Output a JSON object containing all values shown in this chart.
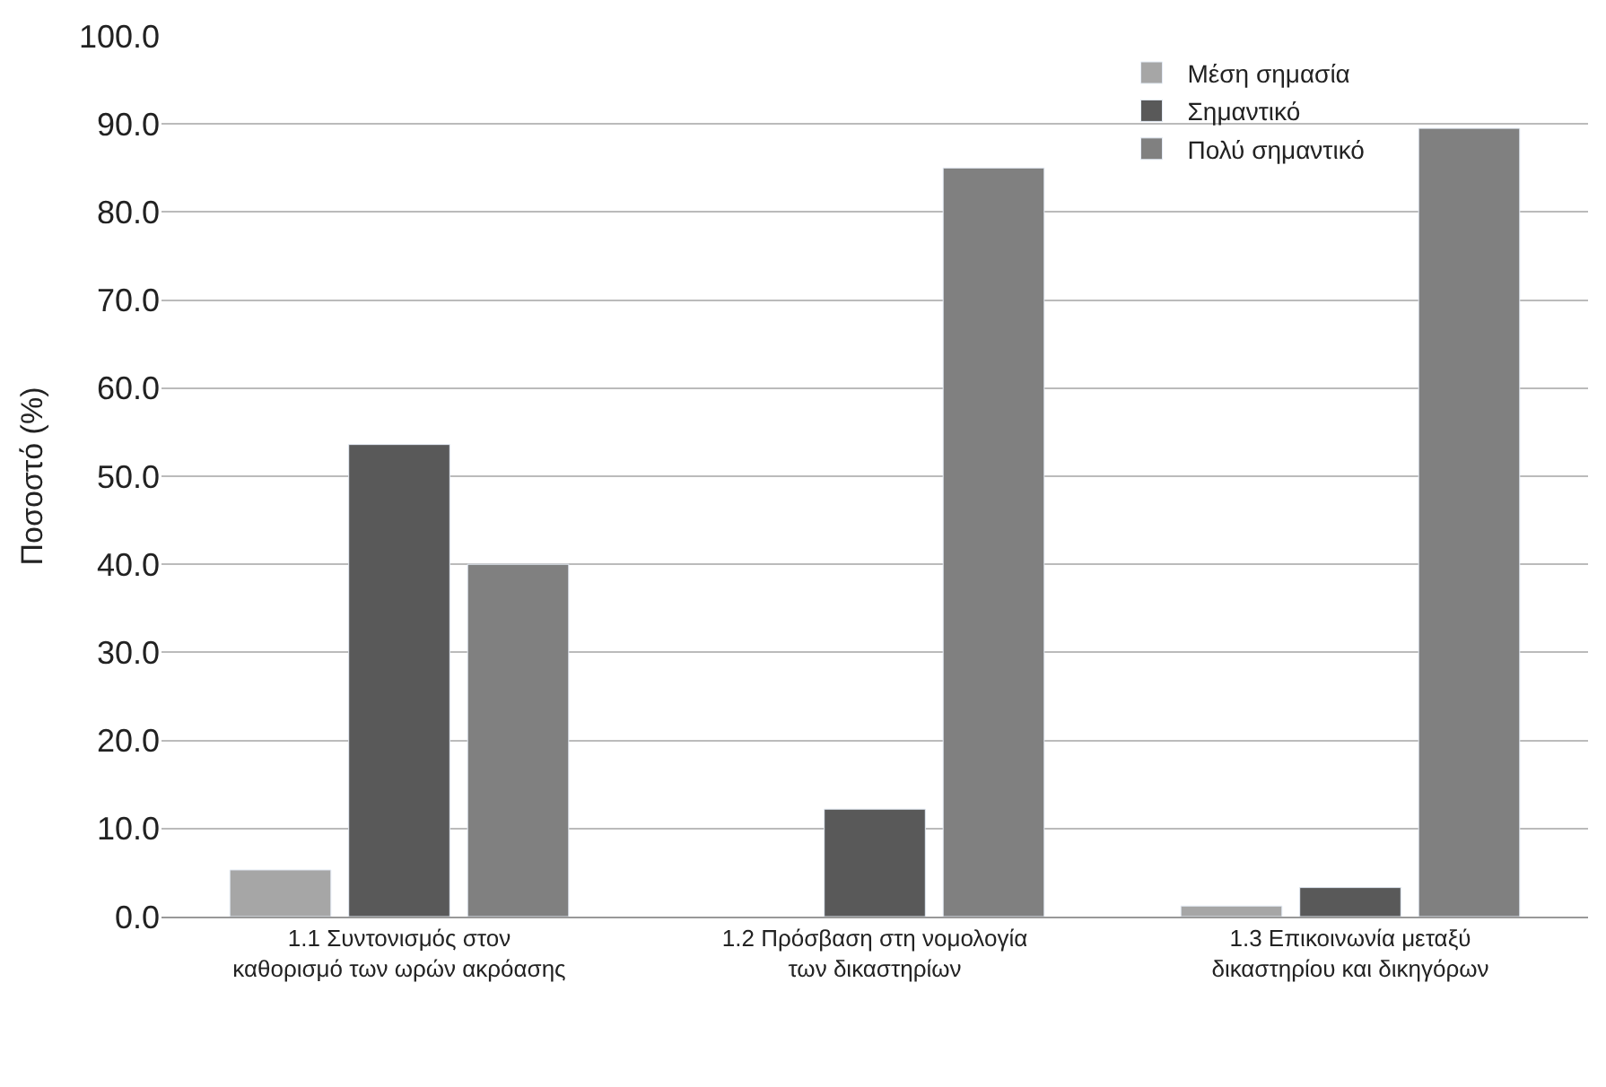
{
  "chart_data": {
    "type": "bar",
    "ylabel": "Ποσοστό (%)",
    "categories": [
      "1.1 Συντονισμός στον καθορισμό των ωρών ακρόασης",
      "1.2 Πρόσβαση στη νομολογία των δικαστηρίων",
      "1.3 Επικοινωνία μεταξύ δικαστηρίου και δικηγόρων"
    ],
    "series": [
      {
        "name": "Μέση σημασία",
        "color": "#a6a6a6",
        "values": [
          5.3,
          null,
          1.2
        ]
      },
      {
        "name": "Σημαντικό",
        "color": "#595959",
        "values": [
          53.6,
          12.2,
          3.3
        ]
      },
      {
        "name": "Πολύ σημαντικό",
        "color": "#808080",
        "values": [
          40.0,
          85.0,
          89.5
        ]
      }
    ],
    "ylim": [
      0,
      100
    ],
    "yticks": [
      {
        "value": 0,
        "label": "0.0"
      },
      {
        "value": 10,
        "label": "10.0"
      },
      {
        "value": 20,
        "label": "20.0"
      },
      {
        "value": 30,
        "label": "30.0"
      },
      {
        "value": 40,
        "label": "40.0"
      },
      {
        "value": 50,
        "label": "50.0"
      },
      {
        "value": 60,
        "label": "60.0"
      },
      {
        "value": 70,
        "label": "70.0"
      },
      {
        "value": 80,
        "label": "80.0"
      },
      {
        "value": 90,
        "label": "90.0"
      },
      {
        "value": 100,
        "label": "100.0"
      }
    ],
    "grid": "y",
    "legend": "top right"
  }
}
